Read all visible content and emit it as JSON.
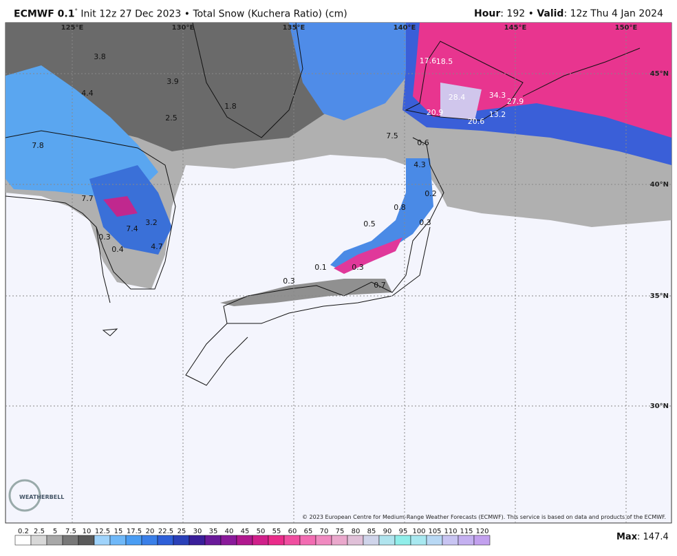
{
  "header": {
    "model": "ECMWF 0.1",
    "degree": "°",
    "description": "Init 12z 27 Dec 2023 • Total Snow (Kuchera Ratio) (cm)",
    "hour_label": "Hour",
    "hour_value": ": 192 •",
    "valid_label": "Valid",
    "valid_value": ": 12z Thu 4 Jan 2024"
  },
  "map": {
    "lon_labels": [
      "125°E",
      "130°E",
      "135°E",
      "140°E",
      "145°E",
      "150°E"
    ],
    "lat_labels": [
      "45°N",
      "40°N",
      "35°N",
      "30°N"
    ],
    "point_values": [
      3.8,
      4.4,
      3.9,
      1.8,
      2.5,
      7.8,
      7.7,
      7.4,
      3.2,
      0.3,
      0.4,
      4.7,
      17.6,
      18.5,
      28.4,
      34.3,
      27.9,
      20.9,
      20.6,
      13.2,
      7.5,
      0.6,
      4.3,
      0.2,
      0.8,
      0.3,
      0.5,
      0.1,
      0.3,
      0.7,
      0.3
    ],
    "copyright": "© 2023 European Centre for Medium-Range Weather Forecasts (ECMWF). This service is based on data and products of the ECMWF.",
    "logo": "WEATHERBELL"
  },
  "legend": {
    "labels": [
      "0.2",
      "2.5",
      "5",
      "7.5",
      "10",
      "12.5",
      "15",
      "17.5",
      "20",
      "22.5",
      "25",
      "30",
      "35",
      "40",
      "45",
      "50",
      "55",
      "60",
      "65",
      "70",
      "75",
      "80",
      "85",
      "90",
      "95",
      "100",
      "105",
      "110",
      "115",
      "120"
    ],
    "colors": [
      "#ffffff",
      "#d8d8d8",
      "#a8a8a8",
      "#787878",
      "#5a5a5a",
      "#9fd3fb",
      "#6fb8f8",
      "#4a9df3",
      "#3a7fe8",
      "#2e5fd8",
      "#2a40b8",
      "#3a1f9a",
      "#6a1a9a",
      "#8a1a9a",
      "#b0188e",
      "#d0208a",
      "#ea2c8a",
      "#f04ea0",
      "#f26cb2",
      "#f08ac0",
      "#eaa8cc",
      "#e0c0d8",
      "#cfd4ea",
      "#b0e4ee",
      "#90eeea",
      "#a8e8f0",
      "#b8d8f4",
      "#c8c4f2",
      "#c4b0f0",
      "#c2a0ee"
    ],
    "max_label": "Max",
    "max_value": ": 147.4"
  }
}
